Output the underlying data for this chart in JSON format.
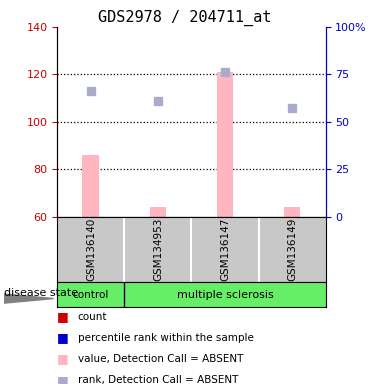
{
  "title": "GDS2978 / 204711_at",
  "samples": [
    "GSM136140",
    "GSM134953",
    "GSM136147",
    "GSM136149"
  ],
  "groups": [
    "control",
    "multiple sclerosis",
    "multiple sclerosis",
    "multiple sclerosis"
  ],
  "bar_values": [
    86,
    64,
    121,
    64
  ],
  "bar_bottom": 60,
  "rank_values": [
    113,
    109,
    121,
    106
  ],
  "bar_color": "#FFB6C1",
  "rank_color": "#AAAACC",
  "left_ylim": [
    60,
    140
  ],
  "left_yticks": [
    60,
    80,
    100,
    120,
    140
  ],
  "right_yticks_pct": [
    0,
    25,
    50,
    75,
    100
  ],
  "dotted_lines": [
    80,
    100,
    120
  ],
  "gray_bg": "#C8C8C8",
  "green_bg": "#66EE66",
  "legend_labels": [
    "count",
    "percentile rank within the sample",
    "value, Detection Call = ABSENT",
    "rank, Detection Call = ABSENT"
  ],
  "legend_colors": [
    "#CC0000",
    "#0000CC",
    "#FFB6C1",
    "#AAAACC"
  ],
  "left_tick_color": "#CC0000",
  "right_tick_color": "#0000CC",
  "title_fontsize": 11,
  "sample_fontsize": 7.5,
  "legend_fontsize": 7.5
}
